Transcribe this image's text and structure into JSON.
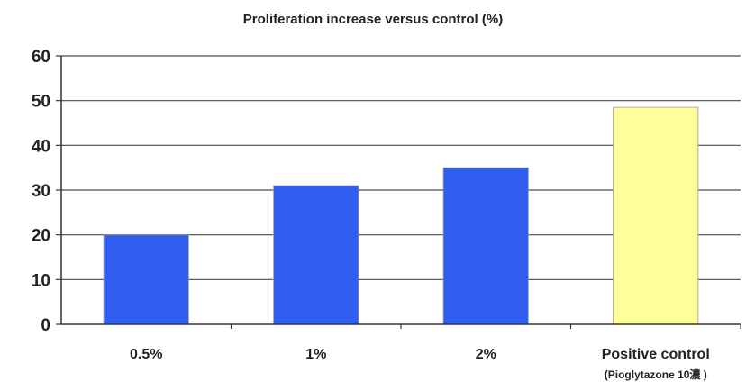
{
  "chart_data": {
    "type": "bar",
    "title": "Proliferation increase versus control (%)",
    "xlabel": "",
    "ylabel": "",
    "categories": [
      "0.5%",
      "1%",
      "2%",
      "Positive control"
    ],
    "category_sublabels": [
      "",
      "",
      "",
      "(Pioglytazone 10濃 )"
    ],
    "values": [
      20,
      31,
      35,
      48.5
    ],
    "bar_colors": [
      "#2f5ef0",
      "#2f5ef0",
      "#2f5ef0",
      "#ffff99"
    ],
    "ylim": [
      0,
      60
    ],
    "yticks": [
      0,
      10,
      20,
      30,
      40,
      50,
      60
    ],
    "grid": true,
    "legend": "none"
  }
}
